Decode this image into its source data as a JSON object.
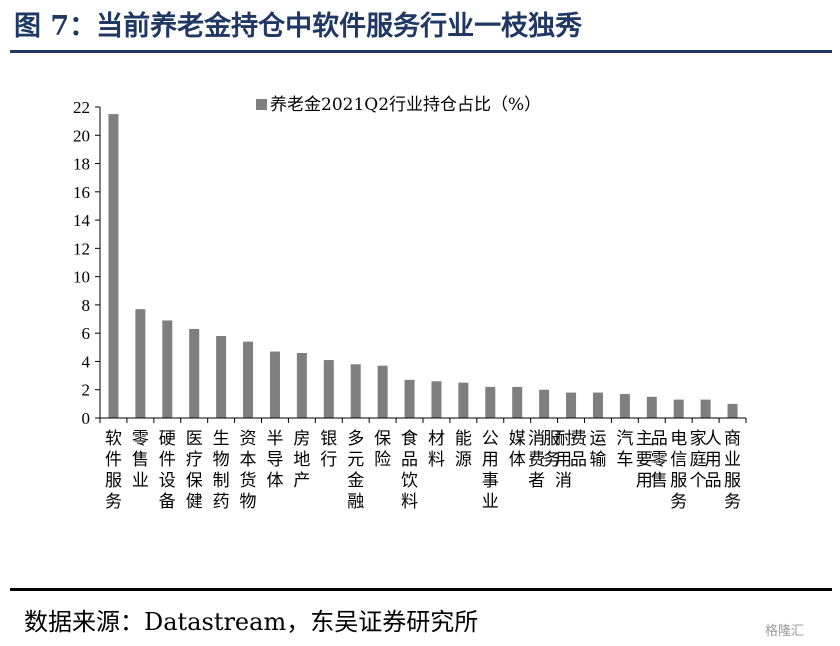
{
  "figure_title": "图 7：当前养老金持仓中软件服务行业一枝独秀",
  "source_text": "数据来源：Datastream，东吴证券研究所",
  "watermark_text": "格隆汇",
  "colors": {
    "title": "#1f3864",
    "bar": "#7f7f7f",
    "axis": "#000000"
  },
  "chart_data": {
    "type": "bar",
    "title": "",
    "xlabel": "",
    "ylabel": "",
    "ylim": [
      0,
      22
    ],
    "yticks": [
      0,
      2,
      4,
      6,
      8,
      10,
      12,
      14,
      16,
      18,
      20,
      22
    ],
    "grid": false,
    "legend_position": "top-center",
    "categories": [
      "软件服务",
      "零售业",
      "硬件设备",
      "医疗保健",
      "生物制药",
      "资本货物",
      "半导体",
      "房地产",
      "银行",
      "多元金融",
      "保险",
      "食品饮料",
      "材料",
      "能源",
      "公用事业",
      "媒体",
      "消费者服务",
      "耐用消费品",
      "运输",
      "汽车",
      "主要用品零售",
      "电信服务",
      "家庭个人用品",
      "商业服务"
    ],
    "series": [
      {
        "name": "养老金2021Q2行业持仓占比（%）",
        "values": [
          21.5,
          7.7,
          6.9,
          6.3,
          5.8,
          5.4,
          4.7,
          4.6,
          4.1,
          3.8,
          3.7,
          2.7,
          2.6,
          2.5,
          2.2,
          2.2,
          2.0,
          1.8,
          1.8,
          1.7,
          1.5,
          1.3,
          1.3,
          1.0
        ]
      }
    ]
  }
}
